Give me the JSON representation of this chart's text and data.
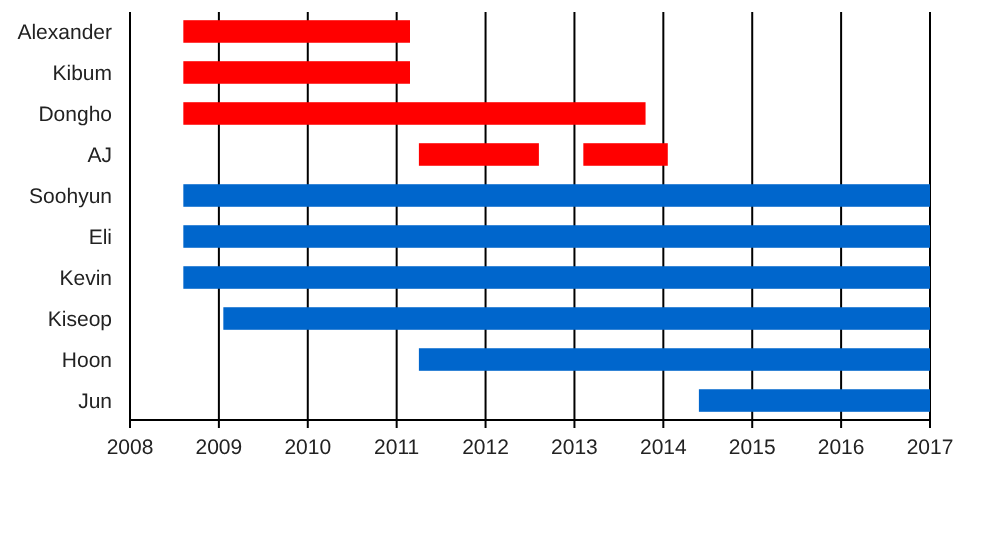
{
  "chart_data": {
    "type": "bar",
    "orientation": "horizontal",
    "categories": [
      "Alexander",
      "Kibum",
      "Dongho",
      "AJ",
      "Soohyun",
      "Eli",
      "Kevin",
      "Kiseop",
      "Hoon",
      "Jun"
    ],
    "series": [
      {
        "color": "#ff0000",
        "base": [
          2008.6,
          2008.6,
          2008.6,
          2011.25,
          null,
          null,
          null,
          null,
          null,
          null
        ],
        "values": [
          2.55,
          2.55,
          5.2,
          1.35,
          null,
          null,
          null,
          null,
          null,
          null
        ]
      },
      {
        "color": "#ff0000",
        "base": [
          null,
          null,
          null,
          2013.1,
          null,
          null,
          null,
          null,
          null,
          null
        ],
        "values": [
          null,
          null,
          null,
          0.95,
          null,
          null,
          null,
          null,
          null,
          null
        ]
      },
      {
        "color": "#0066cc",
        "base": [
          null,
          null,
          null,
          null,
          2008.6,
          2008.6,
          2008.6,
          2009.05,
          2011.25,
          2014.4
        ],
        "values": [
          null,
          null,
          null,
          null,
          8.4,
          8.4,
          8.4,
          7.95,
          5.75,
          2.6
        ]
      }
    ],
    "xlim": [
      2008,
      2017
    ],
    "xticks": [
      2008,
      2009,
      2010,
      2011,
      2012,
      2013,
      2014,
      2015,
      2016,
      2017
    ],
    "grid": "x"
  }
}
